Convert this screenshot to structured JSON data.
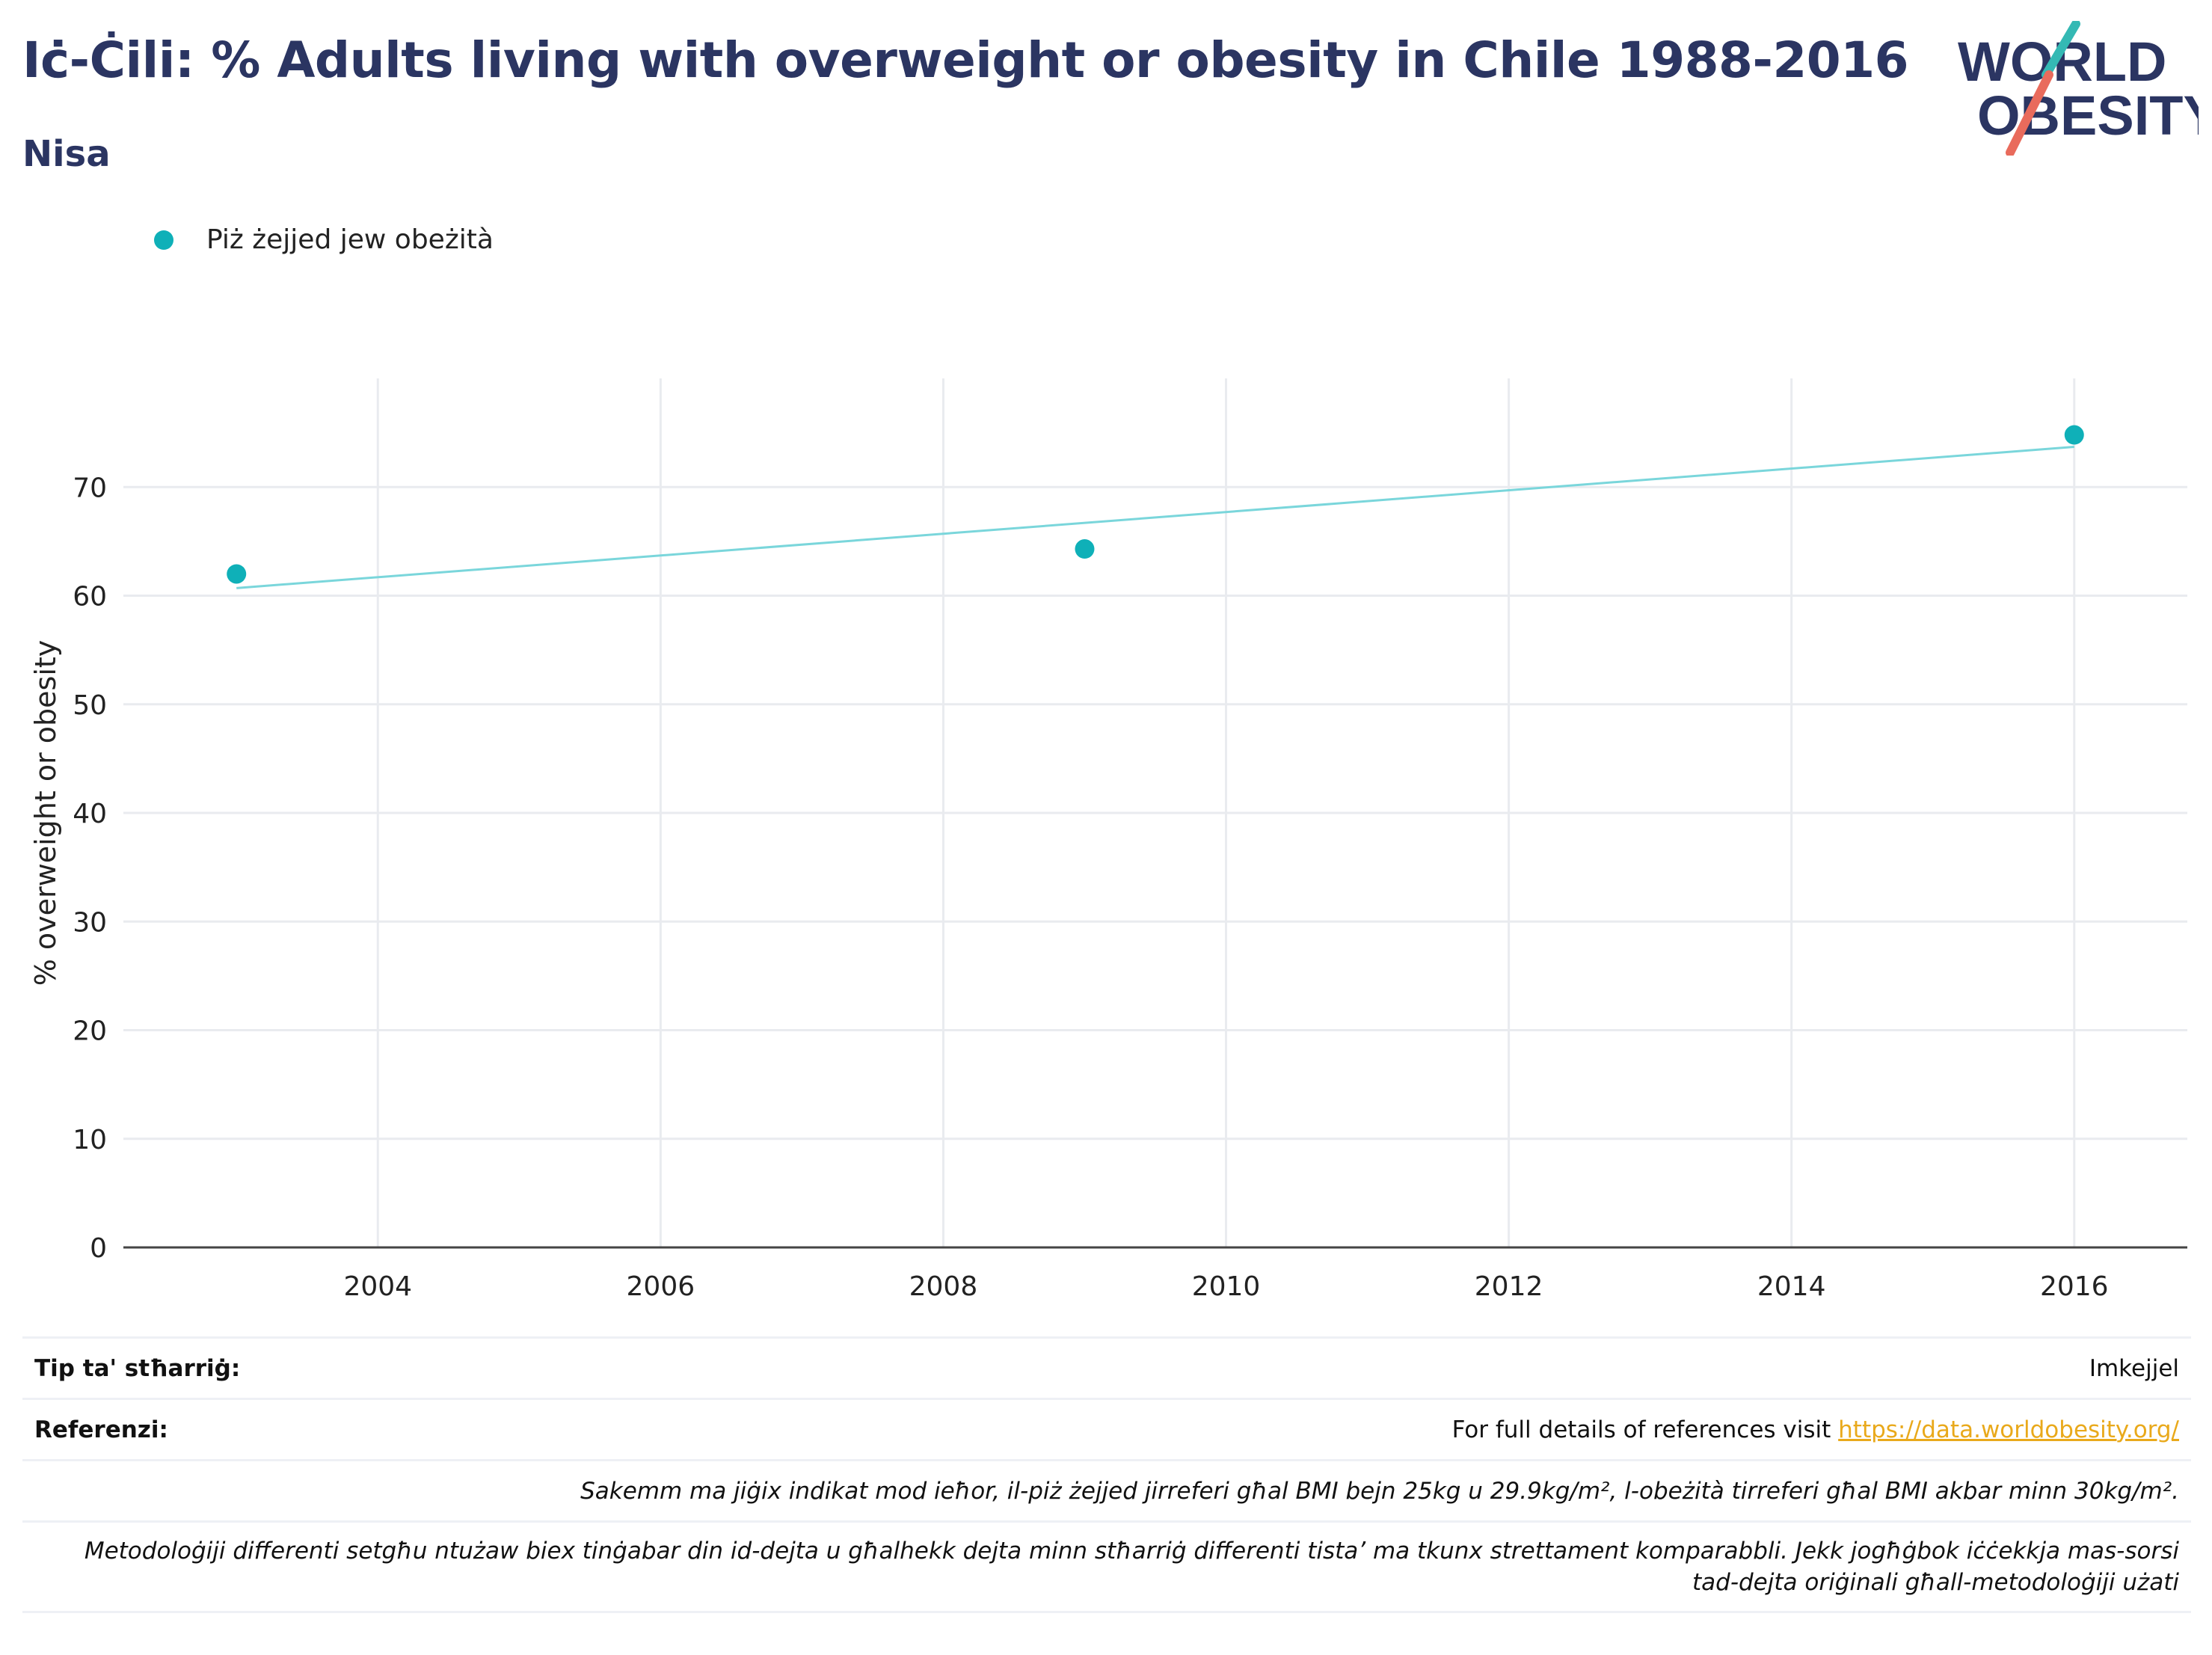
{
  "header": {
    "title": "Iċ-Ċili: % Adults living with overweight or obesity in Chile 1988-2016",
    "subtitle": "Nisa",
    "logo_line1": "WORLD",
    "logo_line2": "OBESITY"
  },
  "colors": {
    "title": "#2b3562",
    "series": "#0fb0b8",
    "trend": "#7ad6db",
    "link": "#e9a91b",
    "logo_teal": "#34b9b4",
    "logo_red": "#e96b5c"
  },
  "chart_data": {
    "type": "scatter",
    "ylabel": "% overweight or obesity",
    "xlabel": "",
    "xlim": [
      2002.2,
      2016.8
    ],
    "ylim": [
      0,
      80
    ],
    "x_ticks": [
      2004,
      2006,
      2008,
      2010,
      2012,
      2014,
      2016
    ],
    "y_ticks": [
      0,
      10,
      20,
      30,
      40,
      50,
      60,
      70
    ],
    "grid": true,
    "legend_position": "top-left",
    "series": [
      {
        "name": "Piż żejjed jew obeżità",
        "points": [
          {
            "x": 2003,
            "y": 62.0
          },
          {
            "x": 2009,
            "y": 64.3
          },
          {
            "x": 2016,
            "y": 74.8
          }
        ]
      }
    ],
    "trendline": {
      "start": {
        "x": 2003,
        "y": 60.7
      },
      "end": {
        "x": 2016,
        "y": 73.7
      }
    }
  },
  "notes": {
    "survey_label": "Tip ta' stħarriġ:",
    "survey_value": "Imkejjel",
    "references_label": "Referenzi:",
    "references_text": "For full details of references visit ",
    "references_link": "https://data.worldobesity.org/",
    "definition": "Sakemm ma jiġix indikat mod ieħor, il-piż żejjed jirreferi għal BMI bejn 25kg u 29.9kg/m², l-obeżità tirreferi għal BMI akbar minn 30kg/m².",
    "methodology_line1": "Metodoloġiji differenti setgħu ntużaw biex tinġabar din id-dejta u għalhekk dejta minn stħarriġ differenti tista’ ma tkunx strettament komparabbli. Jekk jogħġbok iċċekkja mas-sorsi",
    "methodology_line2": "tad-dejta oriġinali għall-metodoloġiji użati"
  }
}
